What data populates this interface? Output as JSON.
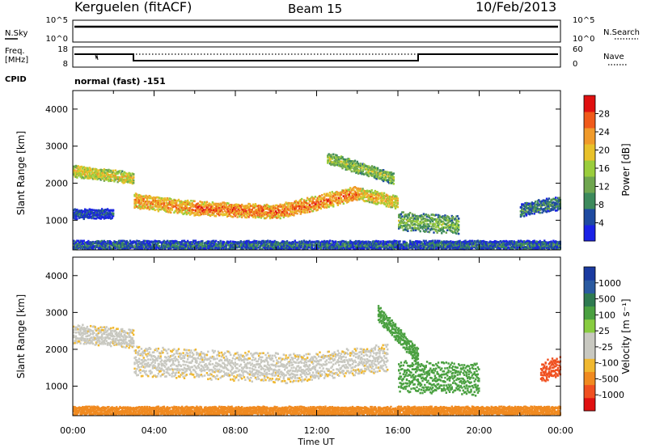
{
  "header": {
    "station": "Kerguelen (fitACF)",
    "beam": "Beam 15",
    "date": "10/Feb/2013"
  },
  "top_panel": {
    "left_label": "N.Sky",
    "left_ticks": [
      "10^5",
      "10^0"
    ],
    "right_label": "N.Search",
    "right_ticks": [
      "10^5",
      "10^0"
    ]
  },
  "freq_panel": {
    "left_label_1": "Freq.",
    "left_label_2": "[MHz]",
    "left_ticks": [
      "18",
      "8"
    ],
    "right_label": "Nave",
    "right_ticks": [
      "60",
      "0"
    ],
    "cpid_label": "CPID",
    "cpid_text": "normal (fast) -151"
  },
  "colors": {
    "power": [
      "#1a22e6",
      "#1e4aa0",
      "#3d8a5c",
      "#6fa64f",
      "#9acd3c",
      "#e8c12a",
      "#f09a2a",
      "#f05a1a",
      "#e01010"
    ],
    "velocity": [
      "#e01010",
      "#f05020",
      "#f08a20",
      "#f0b830",
      "#c8c8c0",
      "#c8c8c0",
      "#88cc40",
      "#4aa040",
      "#2e7a50",
      "#2a5aa0",
      "#1a3aa0"
    ]
  },
  "chart_data": [
    {
      "type": "heatmap",
      "name": "power",
      "ylabel": "Slant Range [km]",
      "yticks": [
        "4000",
        "3000",
        "2000",
        "1000"
      ],
      "ylim": [
        200,
        4500
      ],
      "xlim_hours": [
        0,
        24
      ],
      "colorbar": {
        "label": "Power [dB]",
        "ticks": [
          "28",
          "24",
          "20",
          "16",
          "12",
          "8",
          "4"
        ],
        "range": [
          0,
          32
        ]
      },
      "bands": [
        {
          "t0": 0.0,
          "t1": 3.0,
          "r0": 2350,
          "r1": 2150,
          "w": 260,
          "level": 20
        },
        {
          "t0": 3.0,
          "t1": 6.0,
          "r0": 1550,
          "r1": 1350,
          "w": 320,
          "level": 24
        },
        {
          "t0": 6.0,
          "t1": 10.0,
          "r0": 1350,
          "r1": 1250,
          "w": 300,
          "level": 26
        },
        {
          "t0": 10.0,
          "t1": 14.0,
          "r0": 1250,
          "r1": 1750,
          "w": 320,
          "level": 26
        },
        {
          "t0": 14.0,
          "t1": 16.0,
          "r0": 1750,
          "r1": 1500,
          "w": 280,
          "level": 22
        },
        {
          "t0": 12.5,
          "t1": 15.8,
          "r0": 2700,
          "r1": 2150,
          "w": 260,
          "level": 16
        },
        {
          "t0": 16.0,
          "t1": 19.0,
          "r0": 1000,
          "r1": 900,
          "w": 400,
          "level": 14
        },
        {
          "t0": 22.0,
          "t1": 24.0,
          "r0": 1300,
          "r1": 1500,
          "w": 300,
          "level": 10
        },
        {
          "t0": 0.0,
          "t1": 2.0,
          "r0": 1200,
          "r1": 1200,
          "w": 220,
          "level": 6
        },
        {
          "t0": 0.0,
          "t1": 24.0,
          "r0": 350,
          "r1": 350,
          "w": 200,
          "level": 8
        }
      ]
    },
    {
      "type": "heatmap",
      "name": "velocity",
      "ylabel": "Slant Range [km]",
      "yticks": [
        "4000",
        "3000",
        "2000",
        "1000"
      ],
      "xlabel": "Time UT",
      "xticks": [
        "00:00",
        "04:00",
        "08:00",
        "12:00",
        "16:00",
        "20:00",
        "00:00"
      ],
      "ylim": [
        200,
        4500
      ],
      "xlim_hours": [
        0,
        24
      ],
      "colorbar": {
        "label": "Velocity [m s⁻¹]",
        "ticks": [
          "1000",
          "500",
          "100",
          "25",
          "-25",
          "-100",
          "-500",
          "-1000"
        ]
      },
      "bands": [
        {
          "t0": 0.0,
          "t1": 3.0,
          "r0": 2450,
          "r1": 2300,
          "w": 420,
          "level": 0
        },
        {
          "t0": 3.0,
          "t1": 11.0,
          "r0": 1700,
          "r1": 1500,
          "w": 650,
          "level": 0
        },
        {
          "t0": 11.0,
          "t1": 15.5,
          "r0": 1500,
          "r1": 1800,
          "w": 600,
          "level": 0
        },
        {
          "t0": 15.0,
          "t1": 17.0,
          "r0": 3000,
          "r1": 1800,
          "w": 350,
          "level": 150
        },
        {
          "t0": 16.0,
          "t1": 20.0,
          "r0": 1300,
          "r1": 1200,
          "w": 700,
          "level": 300
        },
        {
          "t0": 23.0,
          "t1": 24.0,
          "r0": 1400,
          "r1": 1600,
          "w": 450,
          "level": -600
        },
        {
          "t0": 0.0,
          "t1": 24.0,
          "r0": 350,
          "r1": 350,
          "w": 200,
          "level": -150
        }
      ]
    }
  ],
  "x_axis": {
    "label": "Time UT",
    "ticks": [
      "00:00",
      "04:00",
      "08:00",
      "12:00",
      "16:00",
      "20:00",
      "00:00"
    ]
  }
}
